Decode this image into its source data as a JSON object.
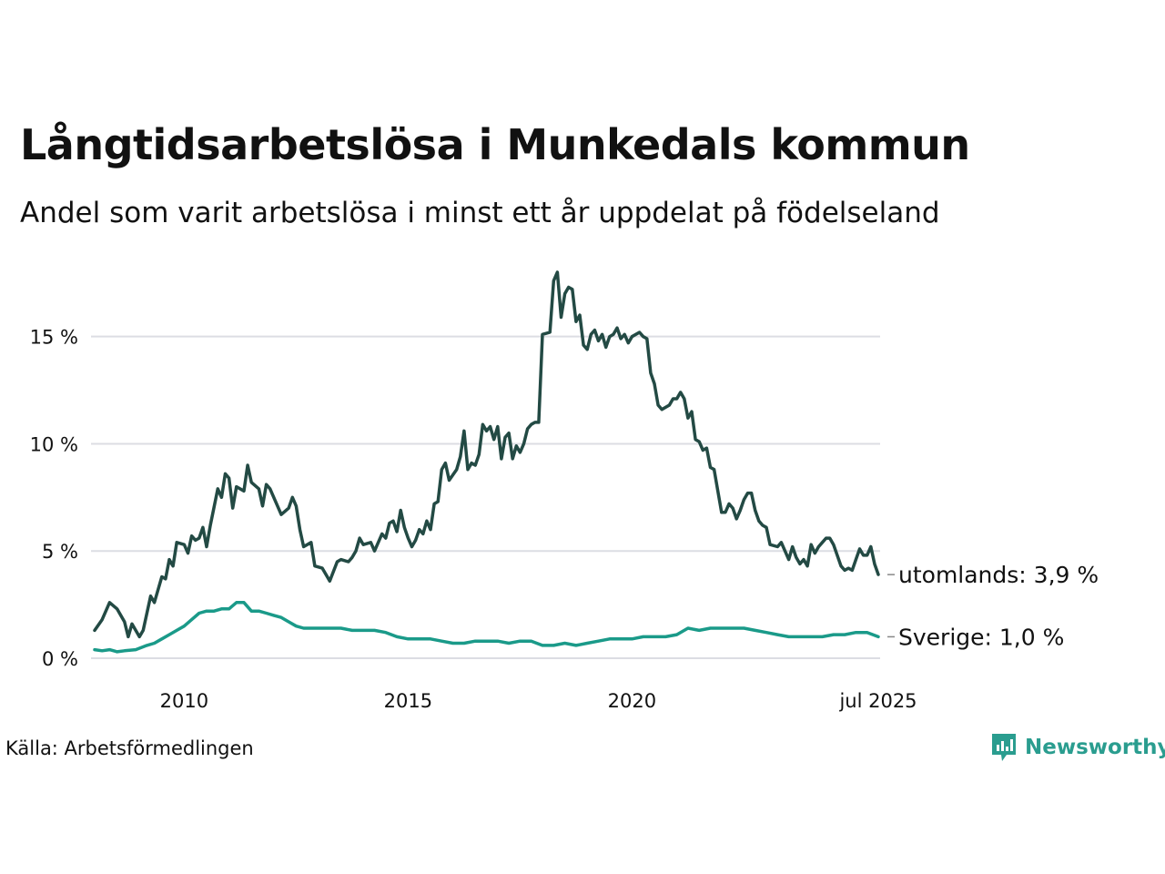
{
  "header": {
    "title": "Långtidsarbetslösa i Munkedals kommun",
    "subtitle": "Andel som varit arbetslösa i minst ett år uppdelat på födelseland"
  },
  "footer": {
    "source": "Källa: Arbetsförmedlingen",
    "brand": "Newsworthy",
    "brand_color": "#2a9d8f"
  },
  "chart_data": {
    "type": "line",
    "title": "Långtidsarbetslösa i Munkedals kommun",
    "subtitle": "Andel som varit arbetslösa i minst ett år uppdelat på födelseland",
    "xlabel": "",
    "ylabel": "",
    "x_range": [
      "2008-01",
      "2025-07"
    ],
    "ylim": [
      0,
      18
    ],
    "grid": true,
    "legend": "end-of-line labels",
    "x_ticks": [
      {
        "date": "2010-01",
        "label": "2010"
      },
      {
        "date": "2015-01",
        "label": "2015"
      },
      {
        "date": "2020-01",
        "label": "2020"
      },
      {
        "date": "2025-07",
        "label": "jul 2025"
      }
    ],
    "y_ticks": [
      {
        "value": 0,
        "label": "0 %"
      },
      {
        "value": 5,
        "label": "5 %"
      },
      {
        "value": 10,
        "label": "10 %"
      },
      {
        "value": 15,
        "label": "15 %"
      }
    ],
    "series": [
      {
        "label": "utomlands: 3,9 %",
        "color": "#234a44",
        "points": [
          [
            "2008-01",
            1.3
          ],
          [
            "2008-03",
            1.8
          ],
          [
            "2008-05",
            2.6
          ],
          [
            "2008-07",
            2.3
          ],
          [
            "2008-09",
            1.7
          ],
          [
            "2008-10",
            1.0
          ],
          [
            "2008-11",
            1.6
          ],
          [
            "2009-01",
            1.0
          ],
          [
            "2009-02",
            1.3
          ],
          [
            "2009-04",
            2.9
          ],
          [
            "2009-05",
            2.6
          ],
          [
            "2009-07",
            3.8
          ],
          [
            "2009-08",
            3.7
          ],
          [
            "2009-09",
            4.6
          ],
          [
            "2009-10",
            4.3
          ],
          [
            "2009-11",
            5.4
          ],
          [
            "2010-01",
            5.3
          ],
          [
            "2010-02",
            4.9
          ],
          [
            "2010-03",
            5.7
          ],
          [
            "2010-04",
            5.5
          ],
          [
            "2010-05",
            5.6
          ],
          [
            "2010-06",
            6.1
          ],
          [
            "2010-07",
            5.2
          ],
          [
            "2010-08",
            6.2
          ],
          [
            "2010-10",
            7.9
          ],
          [
            "2010-11",
            7.5
          ],
          [
            "2010-12",
            8.6
          ],
          [
            "2011-01",
            8.4
          ],
          [
            "2011-02",
            7.0
          ],
          [
            "2011-03",
            8.0
          ],
          [
            "2011-05",
            7.8
          ],
          [
            "2011-06",
            9.0
          ],
          [
            "2011-07",
            8.2
          ],
          [
            "2011-09",
            7.9
          ],
          [
            "2011-10",
            7.1
          ],
          [
            "2011-11",
            8.1
          ],
          [
            "2011-12",
            7.9
          ],
          [
            "2012-03",
            6.7
          ],
          [
            "2012-05",
            7.0
          ],
          [
            "2012-06",
            7.5
          ],
          [
            "2012-07",
            7.1
          ],
          [
            "2012-08",
            6.0
          ],
          [
            "2012-09",
            5.2
          ],
          [
            "2012-11",
            5.4
          ],
          [
            "2012-12",
            4.3
          ],
          [
            "2013-02",
            4.2
          ],
          [
            "2013-03",
            3.9
          ],
          [
            "2013-04",
            3.6
          ],
          [
            "2013-06",
            4.5
          ],
          [
            "2013-07",
            4.6
          ],
          [
            "2013-09",
            4.5
          ],
          [
            "2013-10",
            4.7
          ],
          [
            "2013-11",
            5.0
          ],
          [
            "2013-12",
            5.6
          ],
          [
            "2014-01",
            5.3
          ],
          [
            "2014-03",
            5.4
          ],
          [
            "2014-04",
            5.0
          ],
          [
            "2014-05",
            5.4
          ],
          [
            "2014-06",
            5.8
          ],
          [
            "2014-07",
            5.6
          ],
          [
            "2014-08",
            6.3
          ],
          [
            "2014-09",
            6.4
          ],
          [
            "2014-10",
            5.9
          ],
          [
            "2014-11",
            6.9
          ],
          [
            "2014-12",
            6.1
          ],
          [
            "2015-01",
            5.6
          ],
          [
            "2015-02",
            5.2
          ],
          [
            "2015-03",
            5.5
          ],
          [
            "2015-04",
            6.0
          ],
          [
            "2015-05",
            5.8
          ],
          [
            "2015-06",
            6.4
          ],
          [
            "2015-07",
            6.0
          ],
          [
            "2015-08",
            7.2
          ],
          [
            "2015-09",
            7.3
          ],
          [
            "2015-10",
            8.8
          ],
          [
            "2015-11",
            9.1
          ],
          [
            "2015-12",
            8.3
          ],
          [
            "2016-02",
            8.8
          ],
          [
            "2016-03",
            9.4
          ],
          [
            "2016-04",
            10.6
          ],
          [
            "2016-05",
            8.8
          ],
          [
            "2016-06",
            9.1
          ],
          [
            "2016-07",
            9.0
          ],
          [
            "2016-08",
            9.5
          ],
          [
            "2016-09",
            10.9
          ],
          [
            "2016-10",
            10.6
          ],
          [
            "2016-11",
            10.8
          ],
          [
            "2016-12",
            10.2
          ],
          [
            "2017-01",
            10.8
          ],
          [
            "2017-02",
            9.3
          ],
          [
            "2017-03",
            10.3
          ],
          [
            "2017-04",
            10.5
          ],
          [
            "2017-05",
            9.3
          ],
          [
            "2017-06",
            9.9
          ],
          [
            "2017-07",
            9.6
          ],
          [
            "2017-08",
            10.0
          ],
          [
            "2017-09",
            10.7
          ],
          [
            "2017-10",
            10.9
          ],
          [
            "2017-11",
            11.0
          ],
          [
            "2017-12",
            11.0
          ],
          [
            "2018-01",
            15.1
          ],
          [
            "2018-03",
            15.2
          ],
          [
            "2018-04",
            17.6
          ],
          [
            "2018-05",
            18.0
          ],
          [
            "2018-06",
            15.9
          ],
          [
            "2018-07",
            17.0
          ],
          [
            "2018-08",
            17.3
          ],
          [
            "2018-09",
            17.2
          ],
          [
            "2018-10",
            15.7
          ],
          [
            "2018-11",
            16.0
          ],
          [
            "2018-12",
            14.6
          ],
          [
            "2019-01",
            14.4
          ],
          [
            "2019-02",
            15.1
          ],
          [
            "2019-03",
            15.3
          ],
          [
            "2019-04",
            14.8
          ],
          [
            "2019-05",
            15.1
          ],
          [
            "2019-06",
            14.5
          ],
          [
            "2019-07",
            15.0
          ],
          [
            "2019-08",
            15.1
          ],
          [
            "2019-09",
            15.4
          ],
          [
            "2019-10",
            14.9
          ],
          [
            "2019-11",
            15.1
          ],
          [
            "2019-12",
            14.7
          ],
          [
            "2020-01",
            15.0
          ],
          [
            "2020-03",
            15.2
          ],
          [
            "2020-04",
            15.0
          ],
          [
            "2020-05",
            14.9
          ],
          [
            "2020-06",
            13.3
          ],
          [
            "2020-07",
            12.8
          ],
          [
            "2020-08",
            11.8
          ],
          [
            "2020-09",
            11.6
          ],
          [
            "2020-10",
            11.7
          ],
          [
            "2020-11",
            11.8
          ],
          [
            "2020-12",
            12.1
          ],
          [
            "2021-01",
            12.1
          ],
          [
            "2021-02",
            12.4
          ],
          [
            "2021-03",
            12.1
          ],
          [
            "2021-04",
            11.2
          ],
          [
            "2021-05",
            11.5
          ],
          [
            "2021-06",
            10.2
          ],
          [
            "2021-07",
            10.1
          ],
          [
            "2021-08",
            9.7
          ],
          [
            "2021-09",
            9.8
          ],
          [
            "2021-10",
            8.9
          ],
          [
            "2021-11",
            8.8
          ],
          [
            "2021-12",
            7.8
          ],
          [
            "2022-01",
            6.8
          ],
          [
            "2022-02",
            6.8
          ],
          [
            "2022-03",
            7.2
          ],
          [
            "2022-04",
            7.0
          ],
          [
            "2022-05",
            6.5
          ],
          [
            "2022-06",
            6.9
          ],
          [
            "2022-07",
            7.4
          ],
          [
            "2022-08",
            7.7
          ],
          [
            "2022-09",
            7.7
          ],
          [
            "2022-10",
            6.9
          ],
          [
            "2022-11",
            6.4
          ],
          [
            "2022-12",
            6.2
          ],
          [
            "2023-01",
            6.1
          ],
          [
            "2023-02",
            5.3
          ],
          [
            "2023-04",
            5.2
          ],
          [
            "2023-05",
            5.4
          ],
          [
            "2023-06",
            5.0
          ],
          [
            "2023-07",
            4.6
          ],
          [
            "2023-08",
            5.2
          ],
          [
            "2023-09",
            4.7
          ],
          [
            "2023-10",
            4.4
          ],
          [
            "2023-11",
            4.6
          ],
          [
            "2023-12",
            4.3
          ],
          [
            "2024-01",
            5.3
          ],
          [
            "2024-02",
            4.9
          ],
          [
            "2024-03",
            5.2
          ],
          [
            "2024-04",
            5.4
          ],
          [
            "2024-05",
            5.6
          ],
          [
            "2024-06",
            5.6
          ],
          [
            "2024-07",
            5.3
          ],
          [
            "2024-08",
            4.8
          ],
          [
            "2024-09",
            4.3
          ],
          [
            "2024-10",
            4.1
          ],
          [
            "2024-11",
            4.2
          ],
          [
            "2024-12",
            4.1
          ],
          [
            "2025-01",
            4.6
          ],
          [
            "2025-02",
            5.1
          ],
          [
            "2025-03",
            4.8
          ],
          [
            "2025-04",
            4.8
          ],
          [
            "2025-05",
            5.2
          ],
          [
            "2025-06",
            4.4
          ],
          [
            "2025-07",
            3.9
          ]
        ]
      },
      {
        "label": "Sverige: 1,0 %",
        "color": "#1a9a89",
        "points": [
          [
            "2008-01",
            0.4
          ],
          [
            "2008-03",
            0.35
          ],
          [
            "2008-05",
            0.4
          ],
          [
            "2008-07",
            0.3
          ],
          [
            "2008-09",
            0.35
          ],
          [
            "2008-12",
            0.4
          ],
          [
            "2009-03",
            0.6
          ],
          [
            "2009-05",
            0.7
          ],
          [
            "2009-07",
            0.9
          ],
          [
            "2009-09",
            1.1
          ],
          [
            "2009-11",
            1.3
          ],
          [
            "2010-01",
            1.5
          ],
          [
            "2010-03",
            1.8
          ],
          [
            "2010-05",
            2.1
          ],
          [
            "2010-07",
            2.2
          ],
          [
            "2010-09",
            2.2
          ],
          [
            "2010-11",
            2.3
          ],
          [
            "2011-01",
            2.3
          ],
          [
            "2011-03",
            2.6
          ],
          [
            "2011-05",
            2.6
          ],
          [
            "2011-07",
            2.2
          ],
          [
            "2011-09",
            2.2
          ],
          [
            "2011-11",
            2.1
          ],
          [
            "2012-01",
            2.0
          ],
          [
            "2012-03",
            1.9
          ],
          [
            "2012-05",
            1.7
          ],
          [
            "2012-07",
            1.5
          ],
          [
            "2012-09",
            1.4
          ],
          [
            "2012-11",
            1.4
          ],
          [
            "2013-01",
            1.4
          ],
          [
            "2013-04",
            1.4
          ],
          [
            "2013-07",
            1.4
          ],
          [
            "2013-10",
            1.3
          ],
          [
            "2014-01",
            1.3
          ],
          [
            "2014-04",
            1.3
          ],
          [
            "2014-07",
            1.2
          ],
          [
            "2014-10",
            1.0
          ],
          [
            "2015-01",
            0.9
          ],
          [
            "2015-04",
            0.9
          ],
          [
            "2015-07",
            0.9
          ],
          [
            "2015-10",
            0.8
          ],
          [
            "2016-01",
            0.7
          ],
          [
            "2016-04",
            0.7
          ],
          [
            "2016-07",
            0.8
          ],
          [
            "2016-10",
            0.8
          ],
          [
            "2017-01",
            0.8
          ],
          [
            "2017-04",
            0.7
          ],
          [
            "2017-07",
            0.8
          ],
          [
            "2017-10",
            0.8
          ],
          [
            "2018-01",
            0.6
          ],
          [
            "2018-04",
            0.6
          ],
          [
            "2018-07",
            0.7
          ],
          [
            "2018-10",
            0.6
          ],
          [
            "2019-01",
            0.7
          ],
          [
            "2019-04",
            0.8
          ],
          [
            "2019-07",
            0.9
          ],
          [
            "2019-10",
            0.9
          ],
          [
            "2020-01",
            0.9
          ],
          [
            "2020-04",
            1.0
          ],
          [
            "2020-07",
            1.0
          ],
          [
            "2020-10",
            1.0
          ],
          [
            "2021-01",
            1.1
          ],
          [
            "2021-04",
            1.4
          ],
          [
            "2021-07",
            1.3
          ],
          [
            "2021-10",
            1.4
          ],
          [
            "2022-01",
            1.4
          ],
          [
            "2022-04",
            1.4
          ],
          [
            "2022-07",
            1.4
          ],
          [
            "2022-10",
            1.3
          ],
          [
            "2023-01",
            1.2
          ],
          [
            "2023-04",
            1.1
          ],
          [
            "2023-07",
            1.0
          ],
          [
            "2023-10",
            1.0
          ],
          [
            "2024-01",
            1.0
          ],
          [
            "2024-04",
            1.0
          ],
          [
            "2024-07",
            1.1
          ],
          [
            "2024-10",
            1.1
          ],
          [
            "2025-01",
            1.2
          ],
          [
            "2025-04",
            1.2
          ],
          [
            "2025-07",
            1.0
          ]
        ]
      }
    ]
  }
}
